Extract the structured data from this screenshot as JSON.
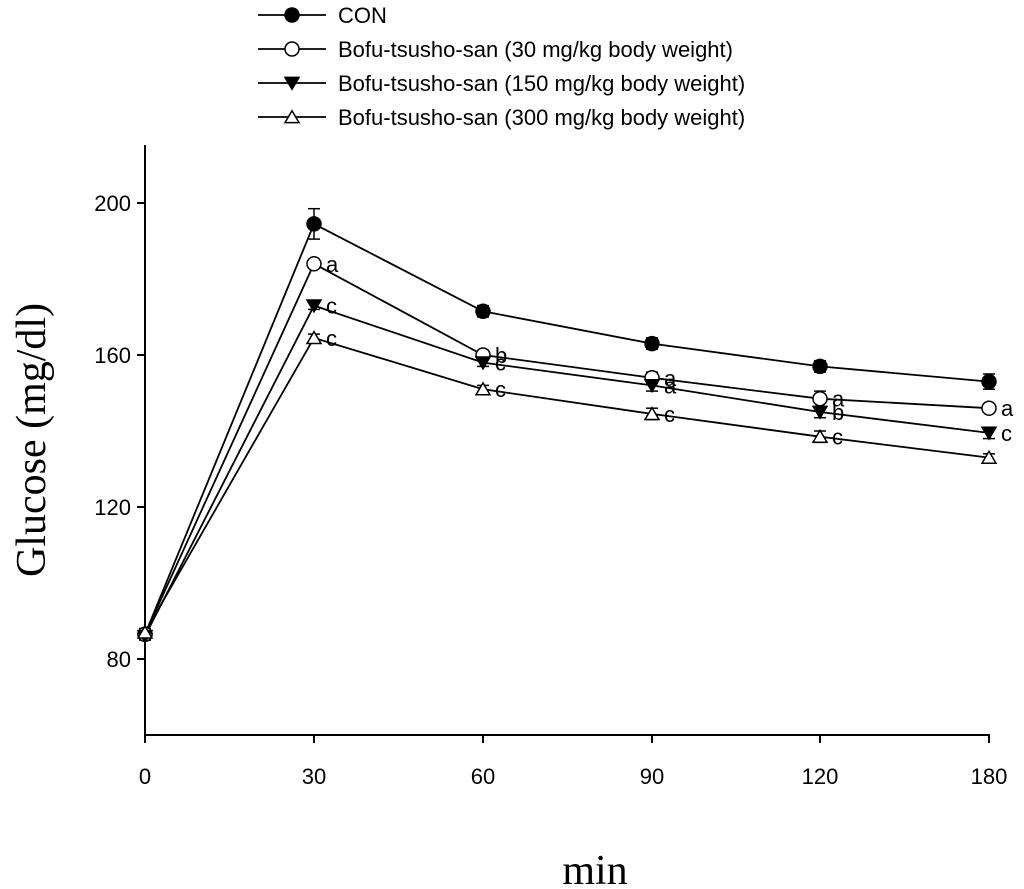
{
  "chart_data": {
    "type": "line",
    "title": "",
    "xlabel": "min",
    "ylabel": "Glucose (mg/dl)",
    "x": [
      0,
      30,
      60,
      90,
      120,
      180
    ],
    "x_tick_labels": [
      "0",
      "30",
      "60",
      "90",
      "120",
      "180"
    ],
    "y_ticks": [
      80,
      120,
      160,
      200
    ],
    "y_tick_labels": [
      "80",
      "120",
      "160",
      "200"
    ],
    "ylim": [
      60,
      215
    ],
    "grid": false,
    "legend_position": "top",
    "series": [
      {
        "name": "CON",
        "marker": "filled-circle",
        "values": [
          86.5,
          194.5,
          171.5,
          163,
          157,
          153
        ],
        "errors": [
          1.5,
          4,
          1.5,
          1.5,
          1.5,
          2
        ],
        "labels": [
          "",
          "",
          "",
          "",
          "",
          ""
        ]
      },
      {
        "name": "Bofu-tsusho-san (30 mg/kg body weight)",
        "marker": "open-circle",
        "values": [
          86.5,
          184,
          160,
          154,
          148.5,
          146
        ],
        "errors": [
          1,
          1,
          1,
          1.5,
          2,
          1
        ],
        "labels": [
          "",
          "a",
          "b",
          "a",
          "a",
          "a"
        ]
      },
      {
        "name": "Bofu-tsusho-san (150 mg/kg body weight)",
        "marker": "filled-triangle-down",
        "values": [
          86,
          173,
          158,
          152,
          145,
          139.5
        ],
        "errors": [
          1,
          1,
          1,
          1.5,
          1.5,
          1.5
        ],
        "labels": [
          "",
          "c",
          "c",
          "a",
          "b",
          "c"
        ]
      },
      {
        "name": "Bofu-tsusho-san (300 mg/kg body weight)",
        "marker": "open-triangle-up",
        "values": [
          87,
          164.5,
          151,
          144.5,
          138.5,
          133
        ],
        "errors": [
          1,
          1,
          1,
          1.5,
          1.5,
          1
        ],
        "labels": [
          "",
          "c",
          "c",
          "c",
          "c",
          ""
        ]
      }
    ]
  }
}
